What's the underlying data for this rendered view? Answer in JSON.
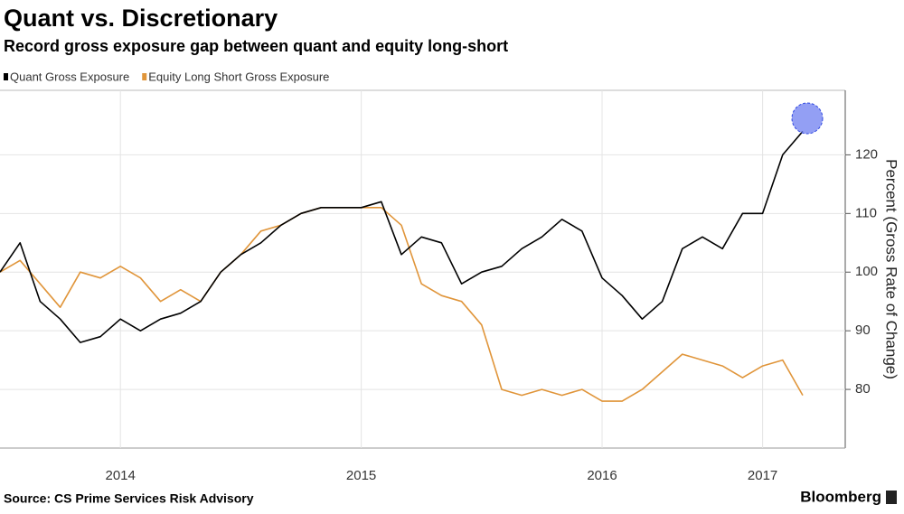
{
  "chart_data": {
    "type": "line",
    "title": "Quant vs. Discretionary",
    "subtitle": "Record gross exposure gap between quant and equity long-short",
    "source": "Source: CS Prime Services Risk Advisory",
    "brand": "Bloomberg",
    "y_axis_label": "Percent (Gross Rate of Change)",
    "categories": [
      null,
      null,
      null,
      null,
      null,
      null,
      "2014",
      null,
      null,
      null,
      null,
      null,
      null,
      null,
      null,
      null,
      null,
      null,
      "2015",
      null,
      null,
      null,
      null,
      null,
      null,
      null,
      null,
      null,
      null,
      null,
      "2016",
      null,
      null,
      null,
      null,
      null,
      null,
      null,
      "2017",
      null,
      null
    ],
    "series": [
      {
        "name": "Quant Gross Exposure",
        "color": "#000000",
        "values": [
          100,
          105,
          95,
          92,
          88,
          89,
          92,
          90,
          92,
          93,
          95,
          100,
          103,
          105,
          108,
          110,
          111,
          111,
          111,
          112,
          103,
          106,
          105,
          98,
          100,
          101,
          104,
          106,
          109,
          107,
          99,
          96,
          92,
          95,
          104,
          106,
          104,
          110,
          110,
          120,
          124
        ]
      },
      {
        "name": "Equity Long Short Gross Exposure",
        "color": "#e0953a",
        "values": [
          100,
          102,
          98,
          94,
          100,
          99,
          101,
          99,
          95,
          97,
          95,
          100,
          103,
          107,
          108,
          110,
          111,
          111,
          111,
          111,
          108,
          98,
          96,
          95,
          91,
          80,
          79,
          80,
          79,
          80,
          78,
          78,
          80,
          83,
          86,
          85,
          84,
          82,
          84,
          85,
          79
        ]
      }
    ],
    "ylim": [
      70,
      131
    ],
    "yticks": [
      80,
      90,
      100,
      110,
      120
    ],
    "grid": true
  }
}
